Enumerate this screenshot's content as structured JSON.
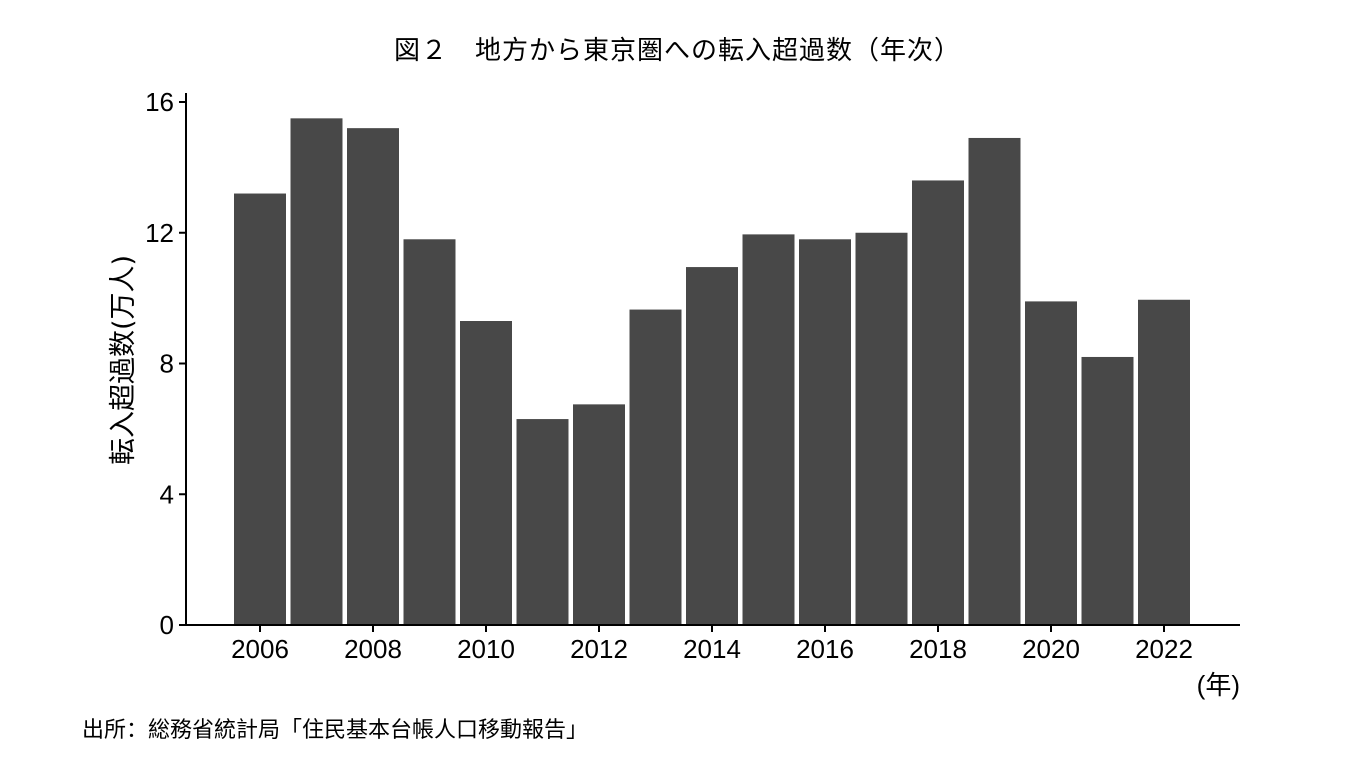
{
  "figure": {
    "title": "図２　地方から東京圏への転入超過数（年次）",
    "source": "出所：総務省統計局「住民基本台帳人口移動報告」"
  },
  "chart_data": {
    "type": "bar",
    "x": [
      2006,
      2007,
      2008,
      2009,
      2010,
      2011,
      2012,
      2013,
      2014,
      2015,
      2016,
      2017,
      2018,
      2019,
      2020,
      2021,
      2022
    ],
    "values": [
      13.2,
      15.5,
      15.2,
      11.8,
      9.3,
      6.3,
      6.75,
      9.65,
      10.95,
      11.95,
      11.8,
      12.0,
      13.6,
      14.9,
      9.9,
      8.2,
      9.95
    ],
    "x_tick_labels": [
      "2006",
      "2008",
      "2010",
      "2012",
      "2014",
      "2016",
      "2018",
      "2020",
      "2022"
    ],
    "y_ticks": [
      0,
      4,
      8,
      12,
      16
    ],
    "ylim": [
      0,
      16
    ],
    "ylabel": "転入超過数(万人)",
    "xlabel": "(年)",
    "bar_color": "#484848",
    "grid": false
  }
}
